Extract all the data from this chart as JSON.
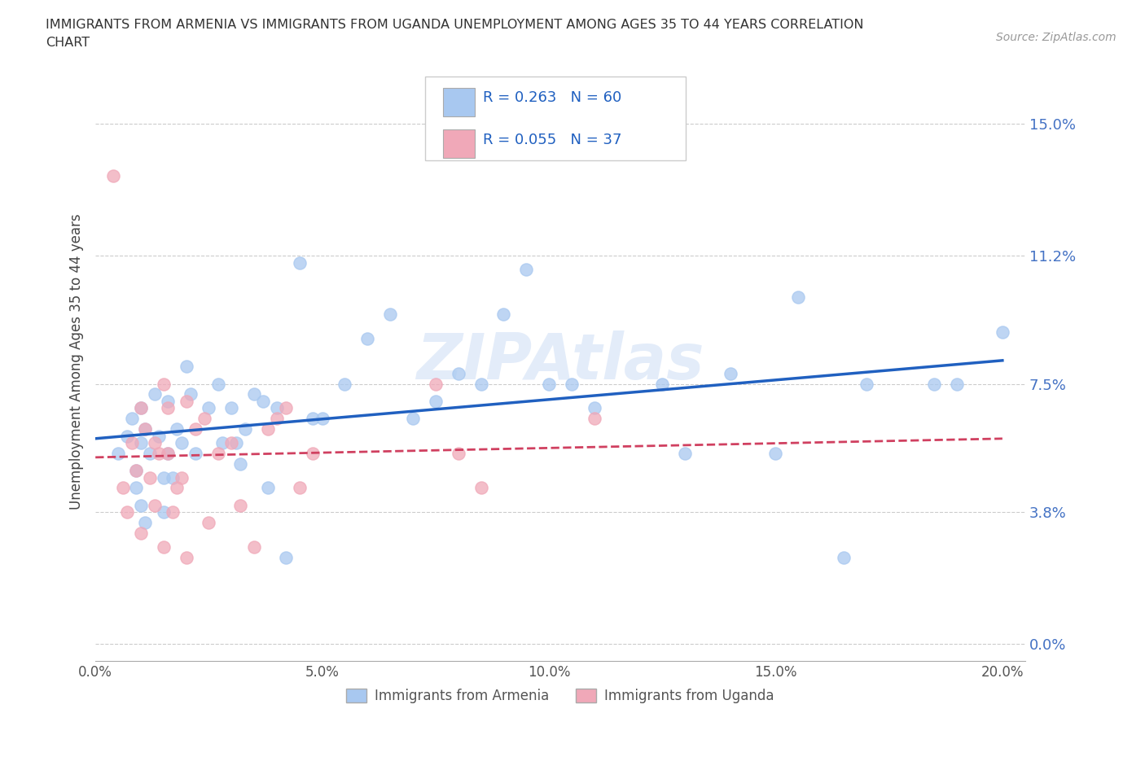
{
  "title_line1": "IMMIGRANTS FROM ARMENIA VS IMMIGRANTS FROM UGANDA UNEMPLOYMENT AMONG AGES 35 TO 44 YEARS CORRELATION",
  "title_line2": "CHART",
  "source_text": "Source: ZipAtlas.com",
  "ylabel": "Unemployment Among Ages 35 to 44 years",
  "xlim": [
    0.0,
    0.205
  ],
  "ylim": [
    -0.005,
    0.168
  ],
  "yticks": [
    0.0,
    0.038,
    0.075,
    0.112,
    0.15
  ],
  "ytick_labels": [
    "0.0%",
    "3.8%",
    "7.5%",
    "11.2%",
    "15.0%"
  ],
  "xticks": [
    0.0,
    0.05,
    0.1,
    0.15,
    0.2
  ],
  "xtick_labels": [
    "0.0%",
    "5.0%",
    "10.0%",
    "15.0%",
    "20.0%"
  ],
  "color_armenia": "#a8c8f0",
  "color_uganda": "#f0a8b8",
  "trendline_armenia": "#2060c0",
  "trendline_uganda": "#d04060",
  "R_armenia": 0.263,
  "N_armenia": 60,
  "R_uganda": 0.055,
  "N_uganda": 37,
  "legend_label_armenia": "Immigrants from Armenia",
  "legend_label_uganda": "Immigrants from Uganda",
  "armenia_x": [
    0.005,
    0.007,
    0.008,
    0.009,
    0.009,
    0.01,
    0.01,
    0.01,
    0.011,
    0.011,
    0.012,
    0.013,
    0.014,
    0.015,
    0.015,
    0.016,
    0.016,
    0.017,
    0.018,
    0.019,
    0.02,
    0.021,
    0.022,
    0.025,
    0.027,
    0.028,
    0.03,
    0.031,
    0.032,
    0.033,
    0.035,
    0.037,
    0.038,
    0.04,
    0.042,
    0.045,
    0.048,
    0.05,
    0.055,
    0.06,
    0.065,
    0.07,
    0.075,
    0.08,
    0.085,
    0.09,
    0.095,
    0.1,
    0.105,
    0.11,
    0.125,
    0.13,
    0.14,
    0.15,
    0.155,
    0.165,
    0.17,
    0.185,
    0.19,
    0.2
  ],
  "armenia_y": [
    0.055,
    0.06,
    0.065,
    0.05,
    0.045,
    0.068,
    0.058,
    0.04,
    0.035,
    0.062,
    0.055,
    0.072,
    0.06,
    0.048,
    0.038,
    0.07,
    0.055,
    0.048,
    0.062,
    0.058,
    0.08,
    0.072,
    0.055,
    0.068,
    0.075,
    0.058,
    0.068,
    0.058,
    0.052,
    0.062,
    0.072,
    0.07,
    0.045,
    0.068,
    0.025,
    0.11,
    0.065,
    0.065,
    0.075,
    0.088,
    0.095,
    0.065,
    0.07,
    0.078,
    0.075,
    0.095,
    0.108,
    0.075,
    0.075,
    0.068,
    0.075,
    0.055,
    0.078,
    0.055,
    0.1,
    0.025,
    0.075,
    0.075,
    0.075,
    0.09
  ],
  "uganda_x": [
    0.004,
    0.006,
    0.007,
    0.008,
    0.009,
    0.01,
    0.01,
    0.011,
    0.012,
    0.013,
    0.013,
    0.014,
    0.015,
    0.015,
    0.016,
    0.016,
    0.017,
    0.018,
    0.019,
    0.02,
    0.02,
    0.022,
    0.024,
    0.025,
    0.027,
    0.03,
    0.032,
    0.035,
    0.038,
    0.04,
    0.042,
    0.045,
    0.048,
    0.075,
    0.08,
    0.085,
    0.11
  ],
  "uganda_y": [
    0.135,
    0.045,
    0.038,
    0.058,
    0.05,
    0.068,
    0.032,
    0.062,
    0.048,
    0.058,
    0.04,
    0.055,
    0.075,
    0.028,
    0.068,
    0.055,
    0.038,
    0.045,
    0.048,
    0.07,
    0.025,
    0.062,
    0.065,
    0.035,
    0.055,
    0.058,
    0.04,
    0.028,
    0.062,
    0.065,
    0.068,
    0.045,
    0.055,
    0.075,
    0.055,
    0.045,
    0.065
  ]
}
